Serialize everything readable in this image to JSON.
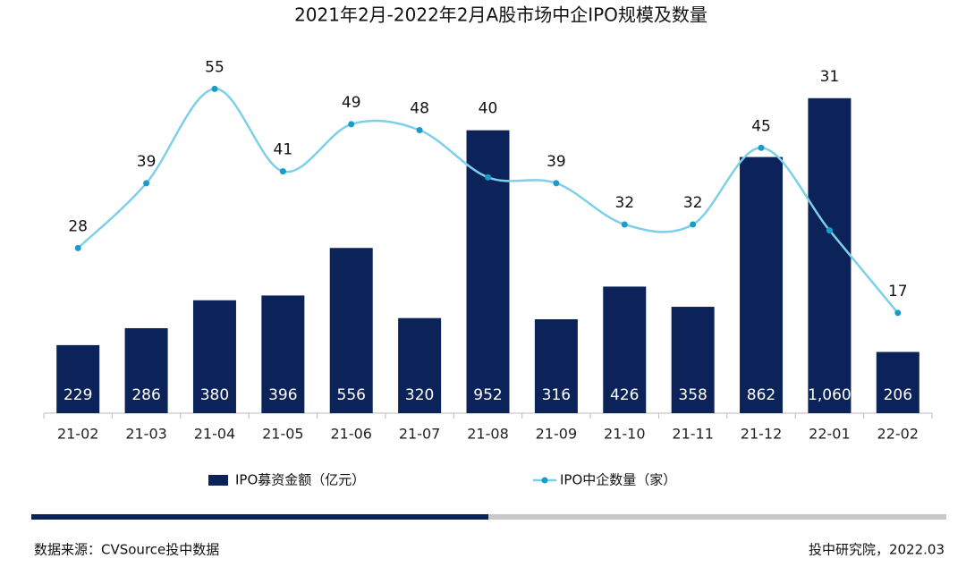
{
  "chart_data": {
    "type": "bar+line",
    "title": "2021年2月-2022年2月A股市场中企IPO规模及数量",
    "categories": [
      "21-02",
      "21-03",
      "21-04",
      "21-05",
      "21-06",
      "21-07",
      "21-08",
      "21-09",
      "21-10",
      "21-11",
      "21-12",
      "22-01",
      "22-02"
    ],
    "series": [
      {
        "name": "IPO募资金额（亿元）",
        "type": "bar",
        "color": "#0c2359",
        "values": [
          229,
          286,
          380,
          396,
          556,
          320,
          952,
          316,
          426,
          358,
          862,
          1060,
          206
        ],
        "value_labels": [
          "229",
          "286",
          "380",
          "396",
          "556",
          "320",
          "952",
          "316",
          "426",
          "358",
          "862",
          "1,060",
          "206"
        ]
      },
      {
        "name": "IPO中企数量（家）",
        "type": "line",
        "axis": "y2",
        "color": "#7ecfe9",
        "values": [
          28,
          39,
          55,
          41,
          49,
          48,
          40,
          39,
          32,
          32,
          45,
          31,
          17
        ]
      }
    ],
    "ylim": [
      0,
      1270
    ],
    "y2lim": [
      0,
      64
    ],
    "source": "数据来源：CVSource投中数据",
    "credit": "投中研究院，2022.03"
  }
}
